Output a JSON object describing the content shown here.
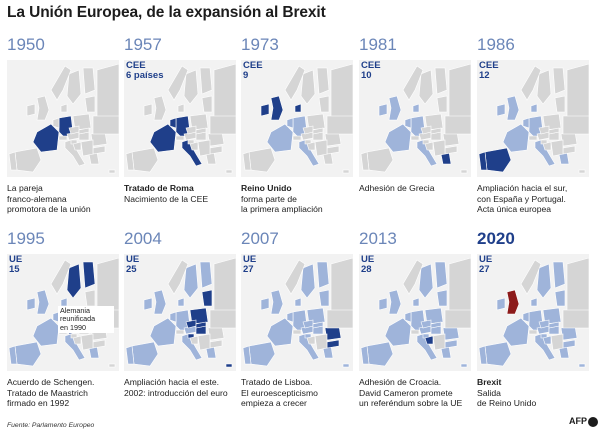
{
  "title": "La Unión Europea, de la expansión al Brexit",
  "colors": {
    "new": "#1f3f8a",
    "member": "#9fb4da",
    "land": "#d5d5d5",
    "sea": "#f2f2f2",
    "year": "#6b86b8"
  },
  "panels": [
    {
      "year": "1950",
      "org": "",
      "count": "",
      "bold": "",
      "desc": "La pareja\nfranco-alemana\npromotora de la unión"
    },
    {
      "year": "1957",
      "org": "CEE",
      "count": "6 países",
      "bold": "Tratado de Roma",
      "desc": "Nacimiento de la CEE"
    },
    {
      "year": "1973",
      "org": "CEE",
      "count": "9",
      "bold": "Reino Unido",
      "desc": "forma parte de\nla primera ampliación"
    },
    {
      "year": "1981",
      "org": "CEE",
      "count": "10",
      "bold": "",
      "desc": "Adhesión de Grecia"
    },
    {
      "year": "1986",
      "org": "CEE",
      "count": "12",
      "bold": "",
      "desc": "Ampliación hacia el sur,\ncon España y Portugal.\nActa única europea"
    },
    {
      "year": "1995",
      "org": "UE",
      "count": "15",
      "bold": "",
      "desc": "Acuerdo de Schengen.\nTratado de Maastrich\nfirmado en 1992",
      "callout": "Alemania\nreunificada\nen 1990"
    },
    {
      "year": "2004",
      "org": "UE",
      "count": "25",
      "bold": "",
      "desc": "Ampliación hacia el este.\n2002: introducción del euro"
    },
    {
      "year": "2007",
      "org": "UE",
      "count": "27",
      "bold": "",
      "desc": "Tratado de Lisboa.\nEl euroescepticismo\nempieza a crecer"
    },
    {
      "year": "2013",
      "org": "UE",
      "count": "28",
      "bold": "",
      "desc": "Adhesión de Croacia.\nDavid Cameron promete\nun referéndum sobre la UE"
    },
    {
      "year": "2020",
      "org": "UE",
      "count": "27",
      "bold": "Brexit",
      "desc": "Salida\nde Reino Unido",
      "current": true
    }
  ],
  "source": "Fuente: Parlamento Europeo",
  "logo": "AFP"
}
